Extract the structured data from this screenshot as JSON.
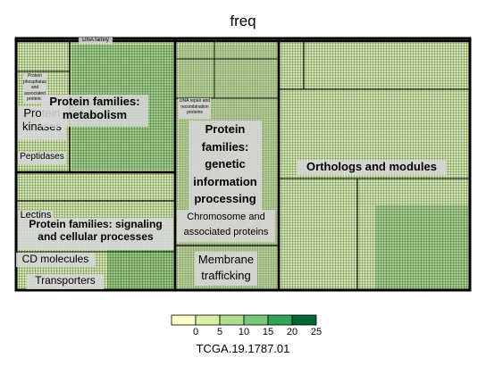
{
  "chart_data": {
    "type": "treemap",
    "title": "freq",
    "legend": {
      "title": "TCGA.19.1787.01",
      "ticks": [
        "0",
        "5",
        "10",
        "15",
        "20",
        "25"
      ],
      "colors": [
        "#ffffcc",
        "#d9f0a3",
        "#addd8e",
        "#78c679",
        "#31a354",
        "#006837"
      ],
      "placement": "bottom"
    },
    "groups": [
      {
        "name": "Protein families: metabolism",
        "subgroups": [
          "Protein phosphatases and associated proteins",
          "Protein kinases",
          "Peptidases"
        ]
      },
      {
        "name": "Protein families: signaling and cellular processes",
        "subgroups": [
          "Lectins",
          "CD molecules",
          "Transporters"
        ]
      },
      {
        "name": "Protein families: genetic information processing",
        "subgroups": [
          "DNA repair and recombination proteins",
          "Chromosome and associated proteins",
          "Membrane trafficking"
        ]
      },
      {
        "name": "Orthologs and modules",
        "subgroups": []
      },
      {
        "name": "DNA family",
        "subgroups": []
      }
    ]
  },
  "labels": {
    "metabolism": "Protein families: metabolism",
    "kinases": "Protein kinases",
    "phosphatases": "Protein phosphatases and associated proteins",
    "peptidases": "Peptidases",
    "signaling": "Protein families: signaling and cellular processes",
    "lectins": "Lectins",
    "cd_molecules": "CD molecules",
    "transporters": "Transporters",
    "genetic": "Protein families: genetic information processing",
    "dna_repair": "DNA repair and recombination proteins",
    "chromosome": "Chromosome and associated proteins",
    "membrane": "Membrane trafficking",
    "orthologs": "Orthologs and modules",
    "dna_family": "DNA family"
  }
}
